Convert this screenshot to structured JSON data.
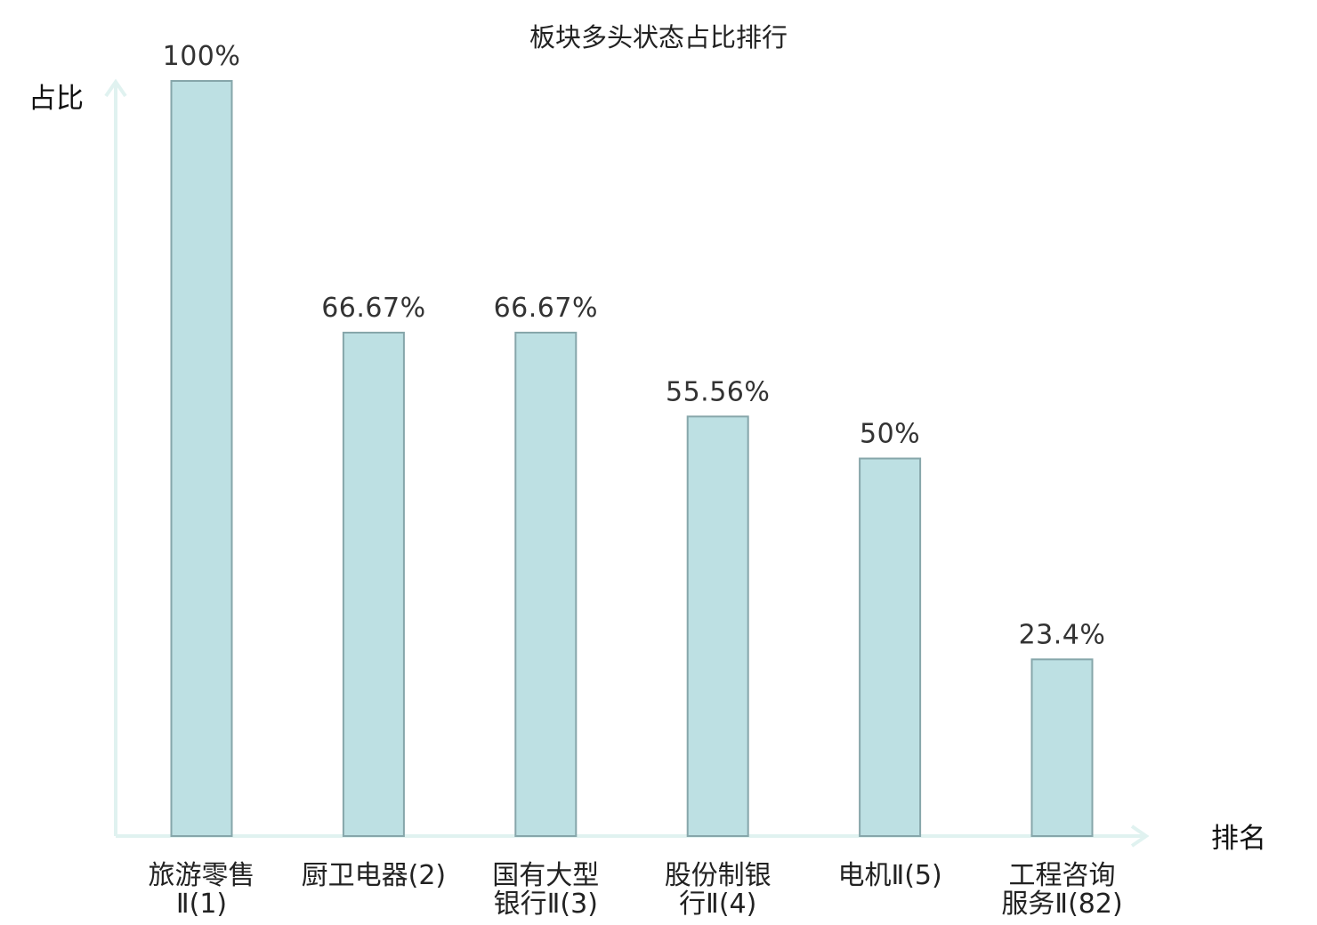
{
  "chart_data": {
    "type": "bar",
    "title": "板块多头状态占比排行",
    "ylabel": "占比",
    "xlabel": "排名",
    "ylim": [
      0,
      100
    ],
    "grid": false,
    "categories": [
      [
        "旅游零售",
        "Ⅱ(1)"
      ],
      [
        "厨卫电器(2)"
      ],
      [
        "国有大型",
        "银行Ⅱ(3)"
      ],
      [
        "股份制银",
        "行Ⅱ(4)"
      ],
      [
        "电机Ⅱ(5)"
      ],
      [
        "工程咨询",
        "服务Ⅱ(82)"
      ]
    ],
    "values": [
      100,
      66.67,
      66.67,
      55.56,
      50,
      23.4
    ],
    "value_labels": [
      "100%",
      "66.67%",
      "66.67%",
      "55.56%",
      "50%",
      "23.4%"
    ],
    "highlight_index": 5,
    "colors": {
      "bar_fill": "#bde0e3",
      "bar_stroke": "#86a6aa",
      "axis": "#e0f2f0",
      "highlight_text": "#e8141b",
      "text": "#222222"
    }
  }
}
